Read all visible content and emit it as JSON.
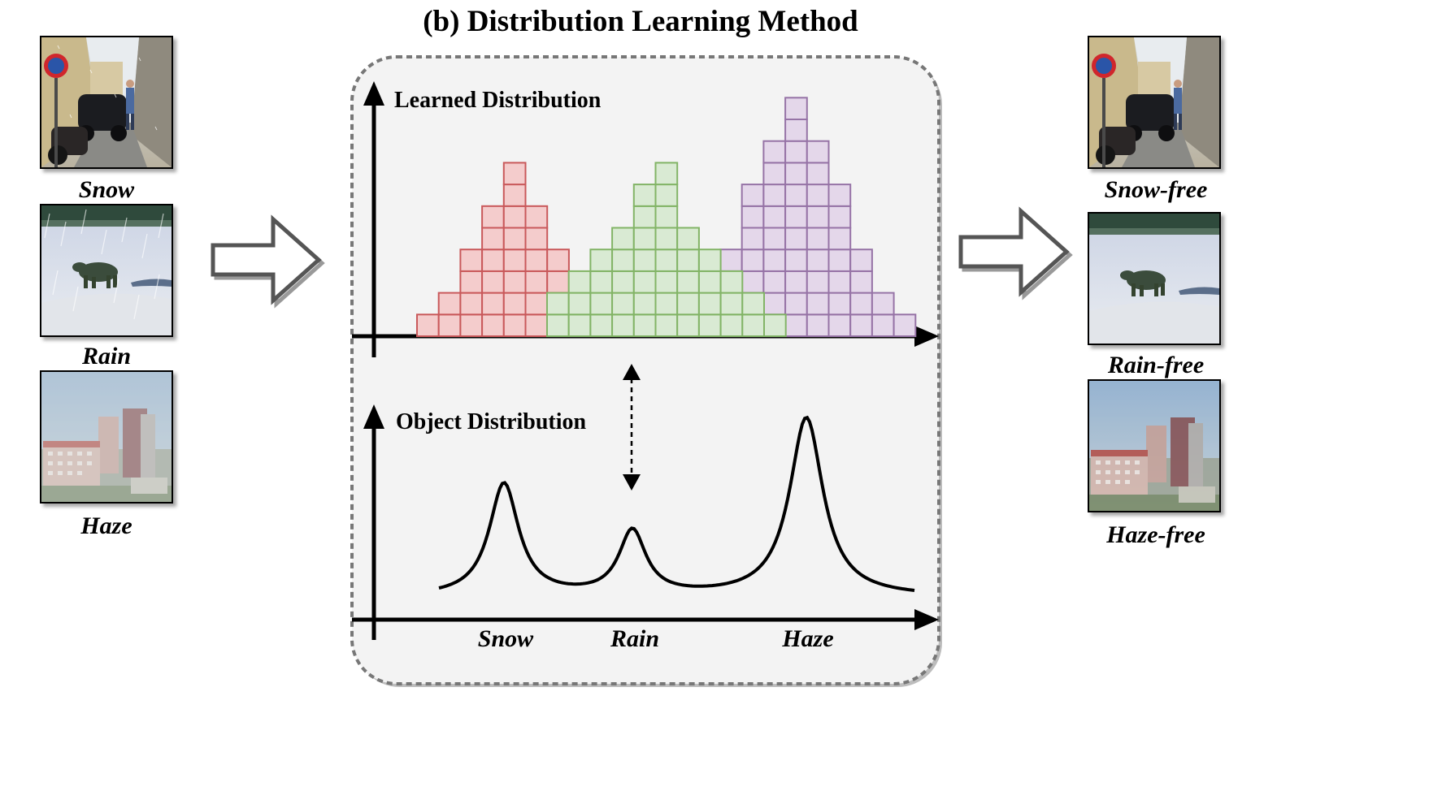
{
  "title": "(b) Distribution Learning Method",
  "inputs": [
    {
      "caption": "Snow",
      "scene": "street"
    },
    {
      "caption": "Rain",
      "scene": "polar-bear"
    },
    {
      "caption": "Haze",
      "scene": "city"
    }
  ],
  "outputs": [
    {
      "caption": "Snow-free",
      "scene": "street"
    },
    {
      "caption": "Rain-free",
      "scene": "polar-bear"
    },
    {
      "caption": "Haze-free",
      "scene": "city"
    }
  ],
  "learned_label": "Learned Distribution",
  "object_label": "Object Distribution",
  "x_labels": [
    "Snow",
    "Rain",
    "Haze"
  ],
  "colors": {
    "red_fill": "#f4cccc",
    "red_stroke": "#c9595b",
    "green_fill": "#d9ead3",
    "green_stroke": "#82b466",
    "purple_fill": "#e4d7ea",
    "purple_stroke": "#9673a6",
    "panel_bg": "#f3f3f3",
    "panel_border": "#777777"
  },
  "histogram": {
    "red": [
      1,
      2,
      4,
      6,
      8,
      6,
      4
    ],
    "green": [
      2,
      3,
      4,
      5,
      7,
      8,
      5,
      4,
      3,
      2,
      1
    ],
    "purple": [
      4,
      7,
      9,
      11,
      9,
      7,
      4,
      2,
      1
    ]
  },
  "curve_peaks": [
    {
      "label": "Snow",
      "height": 0.63
    },
    {
      "label": "Rain",
      "height": 0.36
    },
    {
      "label": "Haze",
      "height": 1.0
    }
  ]
}
